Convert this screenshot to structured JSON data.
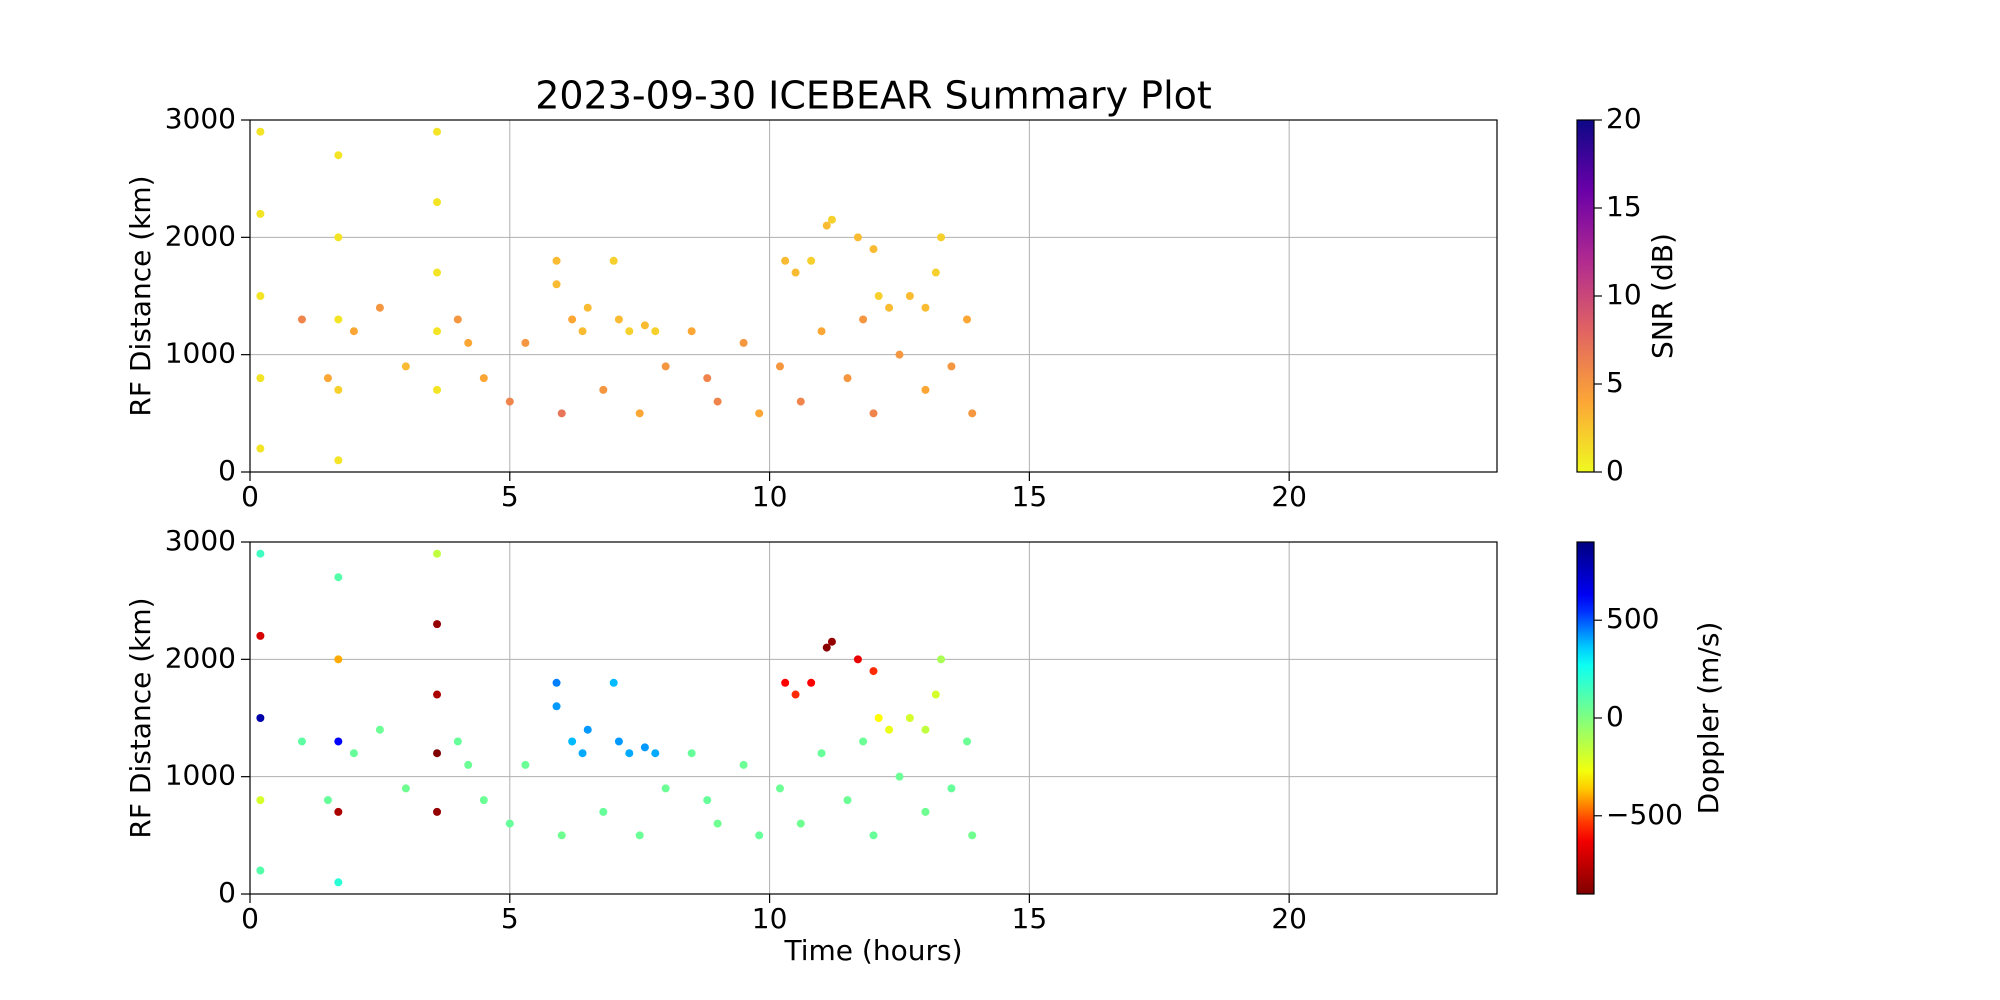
{
  "chart_data": [
    {
      "type": "scatter",
      "title": "2023-09-30 ICEBEAR Summary Plot",
      "y_label": "RF Distance (km)",
      "xlim": [
        0,
        24
      ],
      "xticks": [
        0,
        5,
        10,
        15,
        20
      ],
      "ylim": [
        0,
        3000
      ],
      "yticks": [
        0,
        1000,
        2000,
        3000
      ],
      "grid": true,
      "colorbar_label": "SNR (dB)",
      "colormap": "plasma_r",
      "clim": [
        0,
        20
      ],
      "cticks": [
        0,
        5,
        10,
        15,
        20
      ],
      "x": [
        0.2,
        0.2,
        0.2,
        0.2,
        0.2,
        1.7,
        1.7,
        1.7,
        1.7,
        1.7,
        3.6,
        3.6,
        3.6,
        3.6,
        3.6,
        5.9,
        5.9,
        6.2,
        6.4,
        6.5,
        7.0,
        7.1,
        7.3,
        7.6,
        7.8,
        10.3,
        10.5,
        10.8,
        11.2,
        11.1,
        11.7,
        12.0,
        12.1,
        12.3,
        12.7,
        13.0,
        13.2,
        13.3,
        1.0,
        1.5,
        2.5,
        3.0,
        4.0,
        4.5,
        5.0,
        5.3,
        6.0,
        6.8,
        7.5,
        8.0,
        8.5,
        9.0,
        9.5,
        9.8,
        10.2,
        10.6,
        11.0,
        11.5,
        12.0,
        12.5,
        13.0,
        13.5,
        13.8,
        13.9,
        4.2,
        8.8,
        11.8,
        2.0
      ],
      "y": [
        200,
        800,
        1500,
        2200,
        2900,
        100,
        700,
        1300,
        2000,
        2700,
        700,
        1200,
        1700,
        2300,
        2900,
        1800,
        1600,
        1300,
        1200,
        1400,
        1800,
        1300,
        1200,
        1250,
        1200,
        1800,
        1700,
        1800,
        2150,
        2100,
        2000,
        1900,
        1500,
        1400,
        1500,
        1400,
        1700,
        2000,
        1300,
        800,
        1400,
        900,
        1300,
        800,
        600,
        1100,
        500,
        700,
        500,
        900,
        1200,
        600,
        1100,
        500,
        900,
        600,
        1200,
        800,
        500,
        1000,
        700,
        900,
        1300,
        500,
        1100,
        800,
        1300,
        1200
      ],
      "c": [
        1,
        1,
        1,
        1,
        1,
        1,
        2,
        1,
        1,
        1,
        1,
        1,
        1,
        1,
        1,
        3,
        3,
        4,
        3,
        3,
        2,
        3,
        2,
        3,
        2,
        3,
        3,
        2,
        2,
        3,
        3,
        3,
        2,
        3,
        3,
        3,
        2,
        2,
        6,
        4,
        5,
        3,
        5,
        4,
        6,
        5,
        7,
        5,
        4,
        5,
        4,
        6,
        5,
        4,
        5,
        6,
        4,
        5,
        6,
        5,
        4,
        5,
        4,
        5,
        4,
        6,
        5,
        4
      ]
    },
    {
      "type": "scatter",
      "y_label": "RF Distance (km)",
      "x_label": "Time (hours)",
      "xlim": [
        0,
        24
      ],
      "xticks": [
        0,
        5,
        10,
        15,
        20
      ],
      "ylim": [
        0,
        3000
      ],
      "yticks": [
        0,
        1000,
        2000,
        3000
      ],
      "grid": true,
      "colorbar_label": "Doppler (m/s)",
      "colormap": "jet_r",
      "clim": [
        -900,
        900
      ],
      "cticks": [
        {
          "value": -500,
          "label": "−500"
        },
        0,
        500
      ],
      "x": [
        0.2,
        0.2,
        0.2,
        0.2,
        0.2,
        1.7,
        1.7,
        1.7,
        1.7,
        1.7,
        3.6,
        3.6,
        3.6,
        3.6,
        3.6,
        5.9,
        5.9,
        6.2,
        6.4,
        6.5,
        7.0,
        7.1,
        7.3,
        7.6,
        7.8,
        10.3,
        10.5,
        10.8,
        11.2,
        11.1,
        11.7,
        12.0,
        12.1,
        12.3,
        12.7,
        13.0,
        13.2,
        13.3,
        1.0,
        1.5,
        2.5,
        3.0,
        4.0,
        4.5,
        5.0,
        5.3,
        6.0,
        6.8,
        7.5,
        8.0,
        8.5,
        9.0,
        9.5,
        9.8,
        10.2,
        10.6,
        11.0,
        11.5,
        12.0,
        12.5,
        13.0,
        13.5,
        13.8,
        13.9,
        4.2,
        8.8,
        11.8,
        2.0
      ],
      "y": [
        200,
        800,
        1500,
        2200,
        2900,
        100,
        700,
        1300,
        2000,
        2700,
        700,
        1200,
        1700,
        2300,
        2900,
        1800,
        1600,
        1300,
        1200,
        1400,
        1800,
        1300,
        1200,
        1250,
        1200,
        1800,
        1700,
        1800,
        2150,
        2100,
        2000,
        1900,
        1500,
        1400,
        1500,
        1400,
        1700,
        2000,
        1300,
        800,
        1400,
        900,
        1300,
        800,
        600,
        1100,
        500,
        700,
        500,
        900,
        1200,
        600,
        1100,
        500,
        900,
        600,
        1200,
        800,
        500,
        1000,
        700,
        900,
        1300,
        500,
        1100,
        800,
        1300,
        1200
      ],
      "c": [
        100,
        -200,
        800,
        -700,
        150,
        200,
        -800,
        600,
        -400,
        100,
        -850,
        -900,
        -800,
        -850,
        -150,
        450,
        420,
        380,
        400,
        420,
        380,
        420,
        400,
        420,
        400,
        -600,
        -550,
        -600,
        -850,
        -880,
        -650,
        -550,
        -300,
        -250,
        -200,
        -150,
        -200,
        -100,
        80,
        60,
        50,
        40,
        60,
        50,
        60,
        50,
        40,
        60,
        50,
        50,
        60,
        40,
        50,
        60,
        50,
        40,
        60,
        50,
        60,
        50,
        40,
        60,
        50,
        40,
        50,
        60,
        50,
        60
      ]
    }
  ]
}
